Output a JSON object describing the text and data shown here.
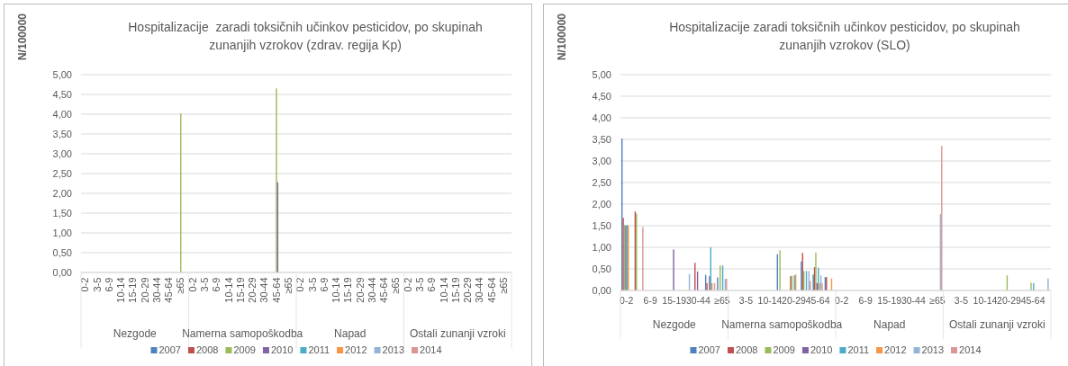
{
  "chart_data": [
    {
      "type": "bar",
      "title": "Hospitalizacije  zaradi toksičnih učinkov pesticidov, po skupinah zunanjih vzrokov (zdrav. regija Kp)",
      "ylabel": "N/100000",
      "categories": [
        "0-2",
        "3-5",
        "6-9",
        "10-14",
        "15-19",
        "20-29",
        "30-44",
        "45-64",
        "≥65",
        "0-2",
        "3-5",
        "6-9",
        "10-14",
        "15-19",
        "20-29",
        "30-44",
        "45-64",
        "≥65",
        "0-2",
        "3-5",
        "6-9",
        "10-14",
        "15-19",
        "20-29",
        "30-44",
        "45-64",
        "≥65",
        "0-2",
        "3-5",
        "6-9",
        "10-14",
        "15-19",
        "20-29",
        "30-44",
        "45-64",
        "≥65"
      ],
      "annotations": [
        "Nezgode",
        "Namerna samopoškodba",
        "Napad",
        "Ostali zunanji vzroki"
      ],
      "series": [
        {
          "name": "2007",
          "color": "#4f81bd",
          "values": [
            0,
            0,
            0,
            0,
            0,
            0,
            0,
            0,
            0,
            0,
            0,
            0,
            0,
            0,
            0,
            0,
            0,
            0,
            0,
            0,
            0,
            0,
            0,
            0,
            0,
            0,
            0,
            0,
            0,
            0,
            0,
            0,
            0,
            0,
            0,
            0
          ]
        },
        {
          "name": "2008",
          "color": "#c0504d",
          "values": [
            0,
            0,
            0,
            0,
            0,
            0,
            0,
            0,
            0,
            0,
            0,
            0,
            0,
            0,
            0,
            0,
            0,
            0,
            0,
            0,
            0,
            0,
            0,
            0,
            0,
            0,
            0,
            0,
            0,
            0,
            0,
            0,
            0,
            0,
            0,
            0
          ]
        },
        {
          "name": "2009",
          "color": "#9bbb59",
          "values": [
            0,
            0,
            0,
            0,
            0,
            0,
            0,
            0,
            4.02,
            0,
            0,
            0,
            0,
            0,
            0,
            0,
            4.65,
            0,
            0,
            0,
            0,
            0,
            0,
            0,
            0,
            0,
            0,
            0,
            0,
            0,
            0,
            0,
            0,
            0,
            0,
            0
          ]
        },
        {
          "name": "2010",
          "color": "#8064a2",
          "values": [
            0,
            0,
            0,
            0,
            0,
            0,
            0,
            0,
            0,
            0,
            0,
            0,
            0,
            0,
            0,
            0,
            2.28,
            0,
            0,
            0,
            0,
            0,
            0,
            0,
            0,
            0,
            0,
            0,
            0,
            0,
            0,
            0,
            0,
            0,
            0,
            0
          ]
        },
        {
          "name": "2011",
          "color": "#4bacc6",
          "values": [
            0,
            0,
            0,
            0,
            0,
            0,
            0,
            0,
            0,
            0,
            0,
            0,
            0,
            0,
            0,
            0,
            0,
            0,
            0,
            0,
            0,
            0,
            0,
            0,
            0,
            0,
            0,
            0,
            0,
            0,
            0,
            0,
            0,
            0,
            0,
            0
          ]
        },
        {
          "name": "2012",
          "color": "#f79646",
          "values": [
            0,
            0,
            0,
            0,
            0,
            0,
            0,
            0,
            0,
            0,
            0,
            0,
            0,
            0,
            0,
            0,
            0,
            0,
            0,
            0,
            0,
            0,
            0,
            0,
            0,
            0,
            0,
            0,
            0,
            0,
            0,
            0,
            0,
            0,
            0,
            0
          ]
        },
        {
          "name": "2013",
          "color": "#95b3d7",
          "values": [
            0,
            0,
            0,
            0,
            0,
            0,
            0,
            0,
            0,
            0,
            0,
            0,
            0,
            0,
            0,
            0,
            0,
            0,
            0,
            0,
            0,
            0,
            0,
            0,
            0,
            0,
            0,
            0,
            0,
            0,
            0,
            0,
            0,
            0,
            0,
            0
          ]
        },
        {
          "name": "2014",
          "color": "#d99694",
          "values": [
            0,
            0,
            0,
            0,
            0,
            0,
            0,
            0,
            0,
            0,
            0,
            0,
            0,
            0,
            0,
            0,
            0,
            0,
            0,
            0,
            0,
            0,
            0,
            0,
            0,
            0,
            0,
            0,
            0,
            0,
            0,
            0,
            0,
            0,
            0,
            0
          ]
        }
      ],
      "ylim": [
        0,
        5
      ],
      "yticks": [
        {
          "value": 0,
          "label": "0,00"
        },
        {
          "value": 0.5,
          "label": "0,50"
        },
        {
          "value": 1,
          "label": "1,00"
        },
        {
          "value": 1.5,
          "label": "1,50"
        },
        {
          "value": 2,
          "label": "2,00"
        },
        {
          "value": 2.5,
          "label": "2,50"
        },
        {
          "value": 3,
          "label": "3,00"
        },
        {
          "value": 3.5,
          "label": "3,50"
        },
        {
          "value": 4,
          "label": "4,00"
        },
        {
          "value": 4.5,
          "label": "4,50"
        },
        {
          "value": 5,
          "label": "5,00"
        }
      ],
      "grid": "y",
      "legend": "bottom"
    },
    {
      "type": "bar",
      "title": "Hospitalizacije zaradi toksičnih učinkov pesticidov, po skupinah zunanjih vzrokov (SLO)",
      "ylabel": "N/100000",
      "categories": [
        "0-2",
        null,
        "6-9",
        null,
        "15-19",
        null,
        "30-44",
        null,
        "≥65",
        null,
        "3-5",
        null,
        "10-14",
        null,
        "20-29",
        null,
        "45-64",
        null,
        "0-2",
        null,
        "6-9",
        null,
        "15-19",
        null,
        "30-44",
        null,
        "≥65",
        null,
        "3-5",
        null,
        "10-14",
        null,
        "20-29",
        null,
        "45-64",
        null
      ],
      "annotations": [
        "Nezgode",
        "Namerna samopoškodba",
        "Napad",
        "Ostali zunanji vzroki"
      ],
      "series": [
        {
          "name": "2007",
          "color": "#4f81bd",
          "values": [
            3.52,
            0,
            0,
            0,
            0,
            0,
            0,
            0.36,
            0.3,
            0,
            0,
            0,
            0,
            0.84,
            0,
            0.67,
            0.37,
            0.31,
            0,
            0,
            0,
            0,
            0,
            0,
            0,
            0,
            0,
            0,
            0,
            0,
            0,
            0,
            0,
            0,
            0,
            0
          ]
        },
        {
          "name": "2008",
          "color": "#c0504d",
          "values": [
            1.68,
            1.83,
            0,
            0,
            0,
            0,
            0.64,
            0.17,
            0,
            0,
            0,
            0,
            0,
            0,
            0.33,
            0.87,
            0.54,
            0.31,
            0,
            0,
            0,
            0,
            0,
            0,
            0,
            0,
            0,
            0,
            0,
            0,
            0,
            0,
            0,
            0,
            0,
            0
          ]
        },
        {
          "name": "2009",
          "color": "#9bbb59",
          "values": [
            1.52,
            1.78,
            0,
            0,
            0,
            0,
            0,
            0,
            0.58,
            0,
            0,
            0,
            0,
            0.93,
            0.34,
            0.45,
            0.88,
            0,
            0,
            0,
            0,
            0,
            0,
            0,
            0,
            0,
            0,
            0,
            0,
            0,
            0,
            0,
            0.35,
            0,
            0.18,
            0
          ]
        },
        {
          "name": "2010",
          "color": "#8064a2",
          "values": [
            1.5,
            0,
            0,
            0,
            0.95,
            0,
            0.44,
            0.33,
            0,
            0,
            0,
            0,
            0,
            0,
            0,
            0,
            0.17,
            0,
            0,
            0,
            0,
            0,
            0,
            0,
            0,
            0,
            0,
            0,
            0,
            0,
            0,
            0,
            0,
            0,
            0,
            0
          ]
        },
        {
          "name": "2011",
          "color": "#4bacc6",
          "values": [
            1.52,
            0,
            0,
            0,
            0,
            0,
            0,
            1.0,
            0.58,
            0,
            0,
            0,
            0,
            0,
            0.35,
            0.45,
            0.53,
            0,
            0,
            0,
            0,
            0,
            0,
            0,
            0,
            0,
            0,
            0,
            0,
            0,
            0,
            0,
            0,
            0,
            0.17,
            0
          ]
        },
        {
          "name": "2012",
          "color": "#f79646",
          "values": [
            1.5,
            0,
            0,
            0,
            0,
            0,
            0,
            0.17,
            0,
            0,
            0,
            0,
            0,
            0,
            0.37,
            0,
            0.17,
            0.28,
            0,
            0,
            0,
            0,
            0,
            0,
            0,
            0,
            0,
            0,
            0,
            0,
            0,
            0,
            0,
            0,
            0,
            0
          ]
        },
        {
          "name": "2013",
          "color": "#95b3d7",
          "values": [
            0,
            0,
            0,
            0,
            0,
            0.38,
            0,
            0,
            0.27,
            0,
            0,
            0,
            0,
            0,
            0,
            0.45,
            0.35,
            0,
            0,
            0,
            0,
            0,
            0,
            0,
            0,
            0,
            1.77,
            0,
            0,
            0,
            0,
            0,
            0,
            0,
            0,
            0.28
          ]
        },
        {
          "name": "2014",
          "color": "#d99694",
          "values": [
            0,
            1.47,
            0,
            0,
            0,
            0,
            0,
            0.17,
            0.27,
            0,
            0,
            0,
            0,
            0,
            0,
            0.22,
            0.17,
            0,
            0,
            0,
            0,
            0,
            0,
            0,
            0,
            0,
            3.35,
            0,
            0,
            0,
            0,
            0,
            0,
            0,
            0,
            0
          ]
        }
      ],
      "ylim": [
        0,
        5
      ],
      "yticks": [
        {
          "value": 0,
          "label": "0,00"
        },
        {
          "value": 0.5,
          "label": "0,50"
        },
        {
          "value": 1,
          "label": "1,00"
        },
        {
          "value": 1.5,
          "label": "1,50"
        },
        {
          "value": 2,
          "label": "2,00"
        },
        {
          "value": 2.5,
          "label": "2,50"
        },
        {
          "value": 3,
          "label": "3,00"
        },
        {
          "value": 3.5,
          "label": "3,50"
        },
        {
          "value": 4,
          "label": "4,00"
        },
        {
          "value": 4.5,
          "label": "4,50"
        },
        {
          "value": 5,
          "label": "5,00"
        }
      ],
      "grid": "y",
      "legend": "bottom"
    }
  ]
}
